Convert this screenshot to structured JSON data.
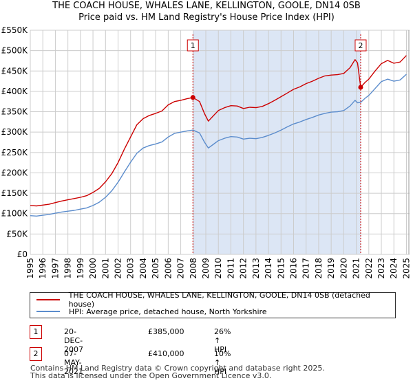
{
  "chart_data": {
    "type": "line",
    "title": "THE COACH HOUSE, WHALES LANE, KELLINGTON, GOOLE, DN14 0SB",
    "subtitle": "Price paid vs. HM Land Registry's House Price Index (HPI)",
    "xlabel": "",
    "ylabel": "",
    "xlim": [
      1995,
      2025.25
    ],
    "ylim": [
      0,
      550000
    ],
    "y_ticks": [
      0,
      50000,
      100000,
      150000,
      200000,
      250000,
      300000,
      350000,
      400000,
      450000,
      500000,
      550000
    ],
    "y_tick_labels": [
      "£0",
      "£50K",
      "£100K",
      "£150K",
      "£200K",
      "£250K",
      "£300K",
      "£350K",
      "£400K",
      "£450K",
      "£500K",
      "£550K"
    ],
    "x_ticks": [
      1995,
      1996,
      1997,
      1998,
      1999,
      2000,
      2001,
      2002,
      2003,
      2004,
      2005,
      2006,
      2007,
      2008,
      2009,
      2010,
      2011,
      2012,
      2013,
      2014,
      2015,
      2016,
      2017,
      2018,
      2019,
      2020,
      2021,
      2022,
      2023,
      2024,
      2025
    ],
    "x_tick_labels": [
      "1995",
      "1996",
      "1997",
      "1998",
      "1999",
      "2000",
      "2001",
      "2002",
      "2003",
      "2004",
      "2005",
      "2006",
      "2007",
      "2008",
      "2009",
      "2010",
      "2011",
      "2012",
      "2013",
      "2014",
      "2015",
      "2016",
      "2017",
      "2018",
      "2019",
      "2020",
      "2021",
      "2022",
      "2023",
      "2024",
      "2025"
    ],
    "grid": true,
    "shaded_period": [
      2007.97,
      2021.35
    ],
    "colors": {
      "property": "#cc0000",
      "hpi": "#5b8ccc",
      "shade": "#dce6f5",
      "grid": "#cccccc",
      "marker_line": "#cc0000"
    },
    "series": [
      {
        "name": "THE COACH HOUSE, WHALES LANE, KELLINGTON, GOOLE, DN14 0SB (detached house)",
        "color": "#cc0000",
        "x": [
          1995.0,
          1995.5,
          1996.0,
          1996.5,
          1997.0,
          1997.5,
          1998.0,
          1998.5,
          1999.0,
          1999.5,
          2000.0,
          2000.5,
          2001.0,
          2001.5,
          2002.0,
          2002.5,
          2003.0,
          2003.5,
          2004.0,
          2004.5,
          2005.0,
          2005.5,
          2006.0,
          2006.5,
          2007.0,
          2007.5,
          2007.97,
          2008.5,
          2008.9,
          2009.2,
          2009.6,
          2010.0,
          2010.5,
          2011.0,
          2011.5,
          2012.0,
          2012.5,
          2013.0,
          2013.5,
          2014.0,
          2014.5,
          2015.0,
          2015.5,
          2016.0,
          2016.5,
          2017.0,
          2017.5,
          2018.0,
          2018.5,
          2019.0,
          2019.5,
          2020.0,
          2020.5,
          2020.9,
          2021.1,
          2021.35,
          2021.7,
          2022.0,
          2022.5,
          2023.0,
          2023.5,
          2024.0,
          2024.5,
          2025.0
        ],
        "values": [
          120000,
          119000,
          121000,
          123000,
          127000,
          131000,
          134000,
          137000,
          140000,
          144000,
          152000,
          162000,
          178000,
          198000,
          225000,
          258000,
          288000,
          318000,
          333000,
          341000,
          346000,
          352000,
          367000,
          375000,
          378000,
          382000,
          385000,
          375000,
          345000,
          327000,
          340000,
          353000,
          360000,
          365000,
          364000,
          358000,
          361000,
          360000,
          363000,
          370000,
          378000,
          387000,
          396000,
          405000,
          411000,
          419000,
          425000,
          432000,
          438000,
          440000,
          441000,
          444000,
          458000,
          478000,
          470000,
          410000,
          422000,
          430000,
          450000,
          468000,
          476000,
          469000,
          472000,
          488000
        ]
      },
      {
        "name": "HPI: Average price, detached house, North Yorkshire",
        "color": "#5b8ccc",
        "x": [
          1995.0,
          1995.5,
          1996.0,
          1996.5,
          1997.0,
          1997.5,
          1998.0,
          1998.5,
          1999.0,
          1999.5,
          2000.0,
          2000.5,
          2001.0,
          2001.5,
          2002.0,
          2002.5,
          2003.0,
          2003.5,
          2004.0,
          2004.5,
          2005.0,
          2005.5,
          2006.0,
          2006.5,
          2007.0,
          2007.5,
          2007.97,
          2008.5,
          2008.9,
          2009.2,
          2009.6,
          2010.0,
          2010.5,
          2011.0,
          2011.5,
          2012.0,
          2012.5,
          2013.0,
          2013.5,
          2014.0,
          2014.5,
          2015.0,
          2015.5,
          2016.0,
          2016.5,
          2017.0,
          2017.5,
          2018.0,
          2018.5,
          2019.0,
          2019.5,
          2020.0,
          2020.5,
          2020.9,
          2021.1,
          2021.35,
          2021.7,
          2022.0,
          2022.5,
          2023.0,
          2023.5,
          2024.0,
          2024.5,
          2025.0
        ],
        "values": [
          95000,
          94000,
          96000,
          98000,
          101000,
          104000,
          106000,
          108000,
          111000,
          114000,
          120000,
          128000,
          140000,
          156000,
          177000,
          202000,
          226000,
          248000,
          261000,
          267000,
          271000,
          276000,
          288000,
          297000,
          300000,
          303000,
          305000,
          298000,
          275000,
          261000,
          270000,
          279000,
          285000,
          289000,
          288000,
          283000,
          285000,
          284000,
          287000,
          292000,
          298000,
          305000,
          313000,
          320000,
          325000,
          331000,
          336000,
          342000,
          346000,
          349000,
          350000,
          353000,
          364000,
          378000,
          372000,
          373000,
          383000,
          390000,
          407000,
          424000,
          430000,
          425000,
          428000,
          442000
        ]
      }
    ],
    "sales": [
      {
        "label": "1",
        "x": 2007.97,
        "value": 385000
      },
      {
        "label": "2",
        "x": 2021.35,
        "value": 410000
      }
    ]
  },
  "legend": {
    "property_label": "THE COACH HOUSE, WHALES LANE, KELLINGTON, GOOLE, DN14 0SB (detached house)",
    "hpi_label": "HPI: Average price, detached house, North Yorkshire"
  },
  "sales_table": [
    {
      "num": "1",
      "date": "20-DEC-2007",
      "price": "£385,000",
      "hpi": "26% ↑ HPI"
    },
    {
      "num": "2",
      "date": "07-MAY-2021",
      "price": "£410,000",
      "hpi": "10% ↑ HPI"
    }
  ],
  "footer": {
    "line1": "Contains HM Land Registry data © Crown copyright and database right 2025.",
    "line2": "This data is licensed under the Open Government Licence v3.0."
  }
}
